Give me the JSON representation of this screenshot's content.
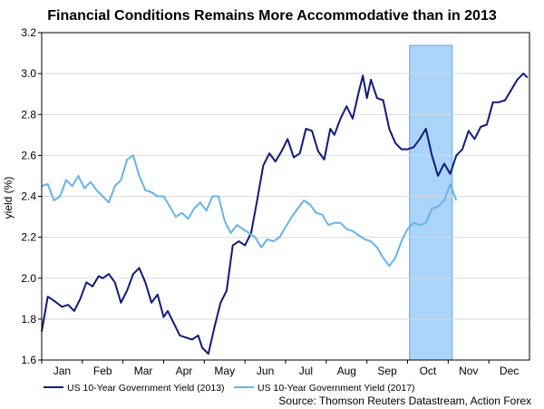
{
  "chart_data": {
    "type": "line",
    "title": "Financial Conditions Remains More Accommodative than in 2013",
    "xlabel": "",
    "ylabel": "yield (%)",
    "ylim": [
      1.6,
      3.2
    ],
    "yticks": [
      "1.6",
      "1.8",
      "2.0",
      "2.2",
      "2.4",
      "2.6",
      "2.8",
      "3.0",
      "3.2"
    ],
    "months": [
      "Jan",
      "Feb",
      "Mar",
      "Apr",
      "May",
      "Jun",
      "Jul",
      "Aug",
      "Sep",
      "Oct",
      "Nov",
      "Dec"
    ],
    "grid": true,
    "highlight": {
      "label": "Oct",
      "from_month": 9.05,
      "to_month": 10.1,
      "color": "#aad4fa"
    },
    "series": [
      {
        "name": "US 10-Year Government Yield (2013)",
        "color": "#101a7a",
        "x": [
          0,
          0.15,
          0.3,
          0.5,
          0.65,
          0.8,
          0.95,
          1.1,
          1.25,
          1.4,
          1.5,
          1.65,
          1.8,
          1.95,
          2.1,
          2.25,
          2.4,
          2.55,
          2.7,
          2.85,
          3.0,
          3.1,
          3.25,
          3.4,
          3.55,
          3.7,
          3.85,
          3.95,
          4.1,
          4.25,
          4.4,
          4.55,
          4.7,
          4.85,
          5.0,
          5.15,
          5.3,
          5.45,
          5.6,
          5.75,
          5.9,
          6.05,
          6.2,
          6.35,
          6.5,
          6.65,
          6.8,
          6.95,
          7.1,
          7.2,
          7.35,
          7.5,
          7.65,
          7.8,
          7.9,
          8.0,
          8.1,
          8.25,
          8.4,
          8.55,
          8.7,
          8.85,
          9.0,
          9.15,
          9.3,
          9.45,
          9.6,
          9.75,
          9.9,
          10.05,
          10.2,
          10.35,
          10.5,
          10.65,
          10.8,
          10.95,
          11.1,
          11.25,
          11.4,
          11.55,
          11.7,
          11.85,
          11.95
        ],
        "values": [
          1.74,
          1.91,
          1.89,
          1.86,
          1.87,
          1.84,
          1.9,
          1.98,
          1.96,
          2.01,
          2.0,
          2.02,
          1.98,
          1.88,
          1.94,
          2.02,
          2.05,
          1.98,
          1.88,
          1.92,
          1.81,
          1.84,
          1.78,
          1.72,
          1.71,
          1.7,
          1.72,
          1.66,
          1.63,
          1.76,
          1.88,
          1.94,
          2.16,
          2.18,
          2.16,
          2.22,
          2.38,
          2.55,
          2.61,
          2.57,
          2.62,
          2.68,
          2.59,
          2.61,
          2.73,
          2.72,
          2.62,
          2.58,
          2.73,
          2.7,
          2.78,
          2.84,
          2.78,
          2.91,
          2.99,
          2.88,
          2.97,
          2.88,
          2.87,
          2.73,
          2.66,
          2.63,
          2.63,
          2.64,
          2.68,
          2.73,
          2.6,
          2.5,
          2.56,
          2.51,
          2.6,
          2.63,
          2.72,
          2.68,
          2.74,
          2.75,
          2.86,
          2.86,
          2.87,
          2.92,
          2.97,
          3.0,
          2.98
        ]
      },
      {
        "name": "US 10-Year Government Yield (2017)",
        "color": "#66b3ec",
        "x": [
          0,
          0.15,
          0.3,
          0.45,
          0.6,
          0.75,
          0.9,
          1.05,
          1.2,
          1.35,
          1.5,
          1.65,
          1.8,
          1.95,
          2.1,
          2.25,
          2.4,
          2.55,
          2.7,
          2.85,
          3.0,
          3.15,
          3.3,
          3.45,
          3.6,
          3.75,
          3.9,
          4.05,
          4.2,
          4.35,
          4.5,
          4.65,
          4.8,
          4.95,
          5.1,
          5.25,
          5.4,
          5.55,
          5.7,
          5.85,
          6.0,
          6.15,
          6.3,
          6.45,
          6.6,
          6.75,
          6.9,
          7.05,
          7.2,
          7.35,
          7.5,
          7.65,
          7.8,
          7.95,
          8.1,
          8.25,
          8.4,
          8.55,
          8.7,
          8.85,
          9.0,
          9.15,
          9.3,
          9.45,
          9.6,
          9.75,
          9.9,
          10.05,
          10.2
        ],
        "values": [
          2.45,
          2.46,
          2.38,
          2.4,
          2.48,
          2.45,
          2.5,
          2.44,
          2.47,
          2.43,
          2.4,
          2.37,
          2.45,
          2.48,
          2.58,
          2.6,
          2.5,
          2.43,
          2.42,
          2.4,
          2.4,
          2.35,
          2.3,
          2.32,
          2.29,
          2.34,
          2.37,
          2.33,
          2.4,
          2.4,
          2.28,
          2.22,
          2.26,
          2.24,
          2.22,
          2.2,
          2.15,
          2.19,
          2.18,
          2.2,
          2.25,
          2.3,
          2.34,
          2.38,
          2.36,
          2.32,
          2.31,
          2.26,
          2.27,
          2.27,
          2.24,
          2.23,
          2.21,
          2.19,
          2.18,
          2.15,
          2.1,
          2.06,
          2.1,
          2.18,
          2.24,
          2.27,
          2.26,
          2.27,
          2.34,
          2.35,
          2.38,
          2.46,
          2.38
        ]
      }
    ]
  },
  "source": "Source: Thomson Reuters Datastream, Action Forex"
}
